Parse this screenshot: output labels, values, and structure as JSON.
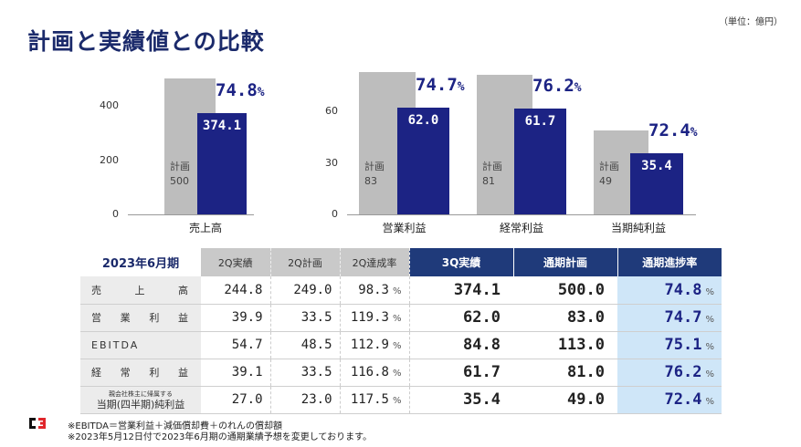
{
  "title": "計画と実績値との比較",
  "unit": "（単位：億円）",
  "charts": {
    "left": {
      "ticks": [
        "0",
        "200",
        "400"
      ],
      "ylim": [
        0,
        400
      ],
      "bars": [
        {
          "category": "売上高",
          "plan_label": "計画",
          "plan": 500,
          "plan_text": "500",
          "actual": 374.1,
          "actual_text": "374.1",
          "pct": "74.8",
          "pct_unit": "%"
        }
      ]
    },
    "right": {
      "ticks": [
        "0",
        "30",
        "60"
      ],
      "ylim": [
        0,
        60
      ],
      "bars": [
        {
          "category": "営業利益",
          "plan_label": "計画",
          "plan": 83,
          "plan_text": "83",
          "actual": 62.0,
          "actual_text": "62.0",
          "pct": "74.7",
          "pct_unit": "%"
        },
        {
          "category": "経常利益",
          "plan_label": "計画",
          "plan": 81,
          "plan_text": "81",
          "actual": 61.7,
          "actual_text": "61.7",
          "pct": "76.2",
          "pct_unit": "%"
        },
        {
          "category": "当期純利益",
          "plan_label": "計画",
          "plan": 49,
          "plan_text": "49",
          "actual": 35.4,
          "actual_text": "35.4",
          "pct": "72.4",
          "pct_unit": "%"
        }
      ]
    }
  },
  "table": {
    "headers": [
      "2023年6月期",
      "2Q実績",
      "2Q計画",
      "2Q達成率",
      "3Q実績",
      "通期計画",
      "通期進捗率"
    ],
    "pct_unit": "%",
    "rows": [
      {
        "label": "売上高",
        "q2a": "244.8",
        "q2p": "249.0",
        "q2r": "98.3",
        "q3a": "374.1",
        "fyp": "500.0",
        "fyr": "74.8"
      },
      {
        "label": "営業利益",
        "q2a": "39.9",
        "q2p": "33.5",
        "q2r": "119.3",
        "q3a": "62.0",
        "fyp": "83.0",
        "fyr": "74.7"
      },
      {
        "label": "EBITDA",
        "q2a": "54.7",
        "q2p": "48.5",
        "q2r": "112.9",
        "q3a": "84.8",
        "fyp": "113.0",
        "fyr": "75.1"
      },
      {
        "label": "経常利益",
        "q2a": "39.1",
        "q2p": "33.5",
        "q2r": "116.8",
        "q3a": "61.7",
        "fyp": "81.0",
        "fyr": "76.2"
      },
      {
        "label_small": "親会社株主に帰属する",
        "label": "当期(四半期)純利益",
        "q2a": "27.0",
        "q2p": "23.0",
        "q2r": "117.5",
        "q3a": "35.4",
        "fyp": "49.0",
        "fyr": "72.4"
      }
    ]
  },
  "notes": [
    "※EBITDA＝営業利益＋減価償却費＋のれんの償却額",
    "※2023年5月12日付で2023年6月期の通期業績予想を変更しております。"
  ],
  "logo_text": "C3"
}
